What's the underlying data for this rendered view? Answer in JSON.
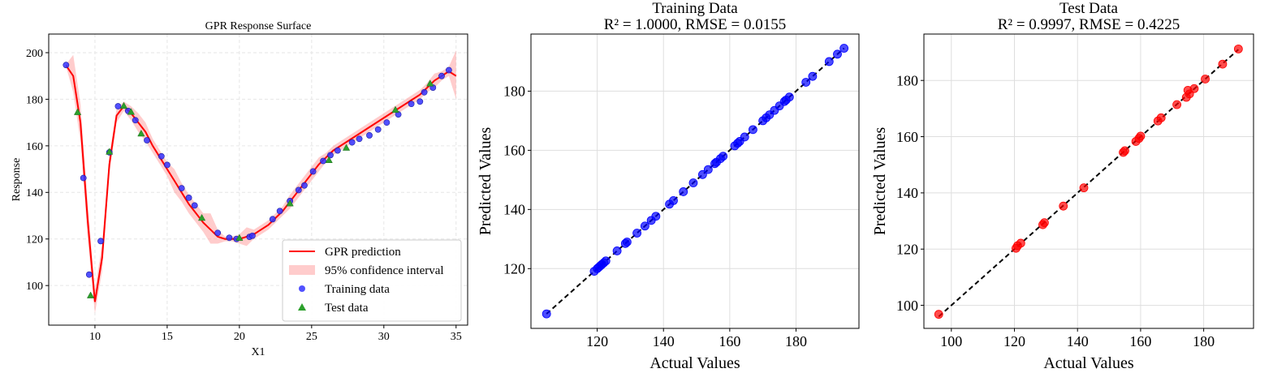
{
  "chart_data": [
    {
      "type": "line",
      "title": "GPR Response Surface",
      "xlabel": "X1",
      "ylabel": "Response",
      "xlim": [
        6.8,
        35.8
      ],
      "ylim": [
        83,
        208
      ],
      "xticks": [
        10,
        15,
        20,
        25,
        30,
        35
      ],
      "yticks": [
        100,
        120,
        140,
        160,
        180,
        200
      ],
      "grid": true,
      "legend": "lower-right",
      "colors": {
        "prediction": "#ff0000",
        "band": "#ff9999",
        "training": "#3333ff",
        "test": "#2ca02c"
      },
      "series": [
        {
          "name": "GPR prediction",
          "kind": "line",
          "x": [
            8.0,
            8.5,
            9.0,
            9.5,
            10.0,
            10.5,
            11.0,
            11.5,
            12.0,
            12.5,
            13.0,
            13.5,
            14.0,
            14.5,
            15.0,
            15.5,
            16.0,
            16.5,
            17.0,
            17.5,
            18.0,
            18.5,
            19.0,
            19.5,
            20.0,
            20.5,
            21.0,
            21.5,
            22.0,
            22.5,
            23.0,
            23.5,
            24.0,
            24.5,
            25.0,
            25.5,
            26.0,
            26.5,
            27.0,
            27.5,
            28.0,
            28.5,
            29.0,
            29.5,
            30.0,
            30.5,
            31.0,
            31.5,
            32.0,
            32.5,
            33.0,
            33.5,
            34.0,
            34.5,
            35.0
          ],
          "y": [
            194.5,
            190,
            170,
            128,
            93,
            112,
            152,
            173,
            177,
            174,
            170,
            166,
            160,
            155,
            150,
            145,
            140,
            135,
            131,
            127,
            124,
            121,
            120,
            120,
            120,
            121,
            122,
            124,
            126,
            129,
            132,
            136,
            140,
            144,
            148,
            152,
            155,
            158,
            160,
            162,
            164,
            166,
            168,
            170,
            172,
            174,
            176,
            178,
            180,
            182,
            185,
            188,
            190,
            192,
            190
          ]
        },
        {
          "name": "95% confidence interval",
          "kind": "band",
          "x": [
            8.0,
            8.5,
            9.0,
            9.5,
            10.0,
            10.5,
            11.0,
            11.5,
            12.0,
            12.5,
            13.0,
            13.5,
            14.0,
            14.5,
            15.0,
            15.5,
            16.0,
            16.5,
            17.0,
            17.5,
            18.0,
            18.5,
            19.0,
            19.5,
            20.0,
            20.5,
            21.0,
            21.5,
            22.0,
            22.5,
            23.0,
            23.5,
            24.0,
            24.5,
            25.0,
            25.5,
            26.0,
            26.5,
            27.0,
            27.5,
            28.0,
            28.5,
            29.0,
            29.5,
            30.0,
            30.5,
            31.0,
            31.5,
            32.0,
            32.5,
            33.0,
            33.5,
            34.0,
            34.5,
            35.0
          ],
          "lower": [
            194,
            183,
            162,
            120,
            88,
            106,
            148,
            170,
            175,
            171,
            166,
            162,
            157,
            152,
            147,
            140,
            136,
            131,
            127,
            123,
            118,
            118,
            119,
            119,
            118,
            117,
            120,
            122,
            124,
            127,
            130,
            133,
            137,
            141,
            145,
            149,
            153,
            156,
            158,
            160,
            162,
            164,
            166,
            168,
            170,
            172,
            174,
            176,
            178,
            180,
            183,
            185,
            188,
            190,
            180
          ],
          "upper": [
            195,
            199,
            178,
            136,
            98,
            118,
            156,
            176,
            179,
            177,
            174,
            170,
            163,
            158,
            153,
            150,
            144,
            139,
            135,
            131,
            131,
            124,
            121,
            121,
            122,
            125,
            124,
            126,
            128,
            131,
            134,
            139,
            143,
            147,
            151,
            155,
            157,
            160,
            162,
            164,
            166,
            168,
            170,
            172,
            174,
            176,
            178,
            180,
            182,
            184,
            187,
            191,
            192,
            194,
            201
          ]
        },
        {
          "name": "Training data",
          "kind": "scatter",
          "x": [
            8.0,
            9.2,
            9.6,
            10.4,
            11.0,
            11.6,
            12.3,
            12.8,
            13.6,
            14.6,
            15.0,
            16.0,
            16.5,
            16.9,
            18.5,
            19.3,
            19.8,
            20.7,
            20.9,
            22.3,
            22.8,
            23.5,
            24.1,
            24.5,
            25.1,
            25.8,
            26.3,
            26.8,
            27.8,
            28.3,
            29.0,
            29.6,
            30.2,
            31.0,
            31.9,
            32.5,
            32.8,
            33.4,
            34.0,
            34.5
          ],
          "y": [
            194.7,
            146.2,
            104.7,
            119.1,
            157.2,
            177.0,
            175.0,
            171.0,
            162.4,
            155.5,
            151.8,
            141.8,
            137.7,
            134.4,
            122.6,
            120.5,
            120.0,
            120.9,
            121.4,
            128.5,
            132.0,
            136.3,
            141.0,
            143.0,
            149.0,
            153.5,
            156.0,
            158.0,
            161.5,
            163.0,
            164.5,
            167.0,
            170.0,
            173.5,
            178.0,
            179.0,
            183.0,
            185.0,
            190.0,
            192.5
          ]
        },
        {
          "name": "Test data",
          "kind": "scatter",
          "x": [
            8.8,
            9.7,
            11.0,
            12.0,
            12.5,
            13.2,
            17.4,
            20.0,
            23.5,
            26.2,
            27.4,
            30.8,
            33.2
          ],
          "y": [
            174.5,
            95.8,
            157.5,
            177.2,
            174.6,
            165.3,
            129.1,
            120.5,
            135.3,
            153.9,
            159.2,
            175.5,
            186.8
          ]
        }
      ]
    },
    {
      "type": "scatter",
      "title": "Training Data",
      "subtitle": "R² = 1.0000, RMSE = 0.0155",
      "xlabel": "Actual Values",
      "ylabel": "Predicted Values",
      "xlim": [
        100.0,
        199.0
      ],
      "ylim": [
        99.8,
        199.3
      ],
      "xticks": [
        120,
        140,
        160,
        180
      ],
      "yticks": [
        120,
        140,
        160,
        180
      ],
      "grid": true,
      "colors": {
        "points": "#0000ff",
        "line": "#000000"
      },
      "diagonal": [
        104.7,
        194.5
      ],
      "series": [
        {
          "name": "",
          "x": [
            104.7,
            119.1,
            120.0,
            120.5,
            121.0,
            121.4,
            122.0,
            122.6,
            126.0,
            128.5,
            129.0,
            132.0,
            134.4,
            136.3,
            137.7,
            141.8,
            143.0,
            146.0,
            149.0,
            151.8,
            153.5,
            155.5,
            156.0,
            157.2,
            158.0,
            161.5,
            162.4,
            163.0,
            164.5,
            167.0,
            170.0,
            171.0,
            172.0,
            173.5,
            175.0,
            176.5,
            177.0,
            178.0,
            183.0,
            185.0,
            190.0,
            192.5,
            194.5
          ],
          "y": [
            104.7,
            119.1,
            120.0,
            120.5,
            121.0,
            121.4,
            122.0,
            122.6,
            126.0,
            128.5,
            129.0,
            132.0,
            134.4,
            136.3,
            137.7,
            141.8,
            143.0,
            146.0,
            149.0,
            151.8,
            153.5,
            155.5,
            156.0,
            157.2,
            158.0,
            161.5,
            162.4,
            163.0,
            164.5,
            167.0,
            170.0,
            171.0,
            172.0,
            173.5,
            175.0,
            176.5,
            177.0,
            178.0,
            183.0,
            185.0,
            190.0,
            192.5,
            194.5
          ]
        }
      ]
    },
    {
      "type": "scatter",
      "title": "Test Data",
      "subtitle": "R² = 0.9997, RMSE = 0.4225",
      "xlabel": "Actual Values",
      "ylabel": "Predicted Values",
      "xlim": [
        91.3,
        195.8
      ],
      "ylim": [
        91.8,
        196.5
      ],
      "xticks": [
        100,
        120,
        140,
        160,
        180
      ],
      "yticks": [
        100,
        120,
        140,
        160,
        180
      ],
      "grid": true,
      "colors": {
        "points": "#ff0000",
        "line": "#000000"
      },
      "diagonal": [
        96.0,
        191.0
      ],
      "series": [
        {
          "name": "",
          "x": [
            96.0,
            120.5,
            121.0,
            122.0,
            129.0,
            129.5,
            135.5,
            142.0,
            154.5,
            155.0,
            158.5,
            159.5,
            160.0,
            165.5,
            166.5,
            171.5,
            174.5,
            175.0,
            175.5,
            177.0,
            180.5,
            186.0,
            191.0
          ],
          "y": [
            96.8,
            120.3,
            121.2,
            122.1,
            128.7,
            129.4,
            135.3,
            141.8,
            154.4,
            155.0,
            158.3,
            159.4,
            160.2,
            165.6,
            166.7,
            171.4,
            174.0,
            176.5,
            175.2,
            177.1,
            180.5,
            185.8,
            191.2
          ]
        }
      ]
    }
  ]
}
